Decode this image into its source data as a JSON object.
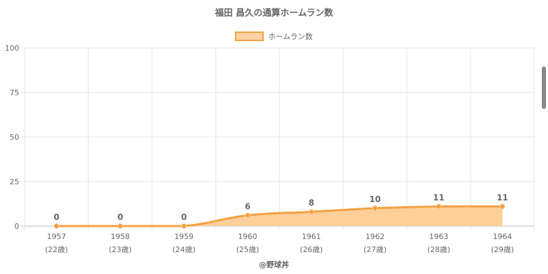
{
  "chart_data": {
    "type": "area",
    "title": "福田 昌久の通算ホームラン数",
    "legend": {
      "position": "top",
      "label": "ホームラン数"
    },
    "x": [
      "1957",
      "1958",
      "1959",
      "1960",
      "1961",
      "1962",
      "1963",
      "1964"
    ],
    "x_sublabels": [
      "(22歳)",
      "(23歳)",
      "(24歳)",
      "(25歳)",
      "(26歳)",
      "(27歳)",
      "(28歳)",
      "(29歳)"
    ],
    "series": [
      {
        "name": "ホームラン数",
        "values": [
          0,
          0,
          0,
          6,
          8,
          10,
          11,
          11
        ]
      }
    ],
    "data_labels": [
      "0",
      "0",
      "0",
      "6",
      "8",
      "10",
      "11",
      "11"
    ],
    "ylim": [
      0,
      100
    ],
    "yticks": [
      "0",
      "25",
      "50",
      "75",
      "100"
    ],
    "grid": true,
    "colors": {
      "line": "#f4a040",
      "fill": "#ffcf99"
    }
  },
  "credit": "@野球丼"
}
